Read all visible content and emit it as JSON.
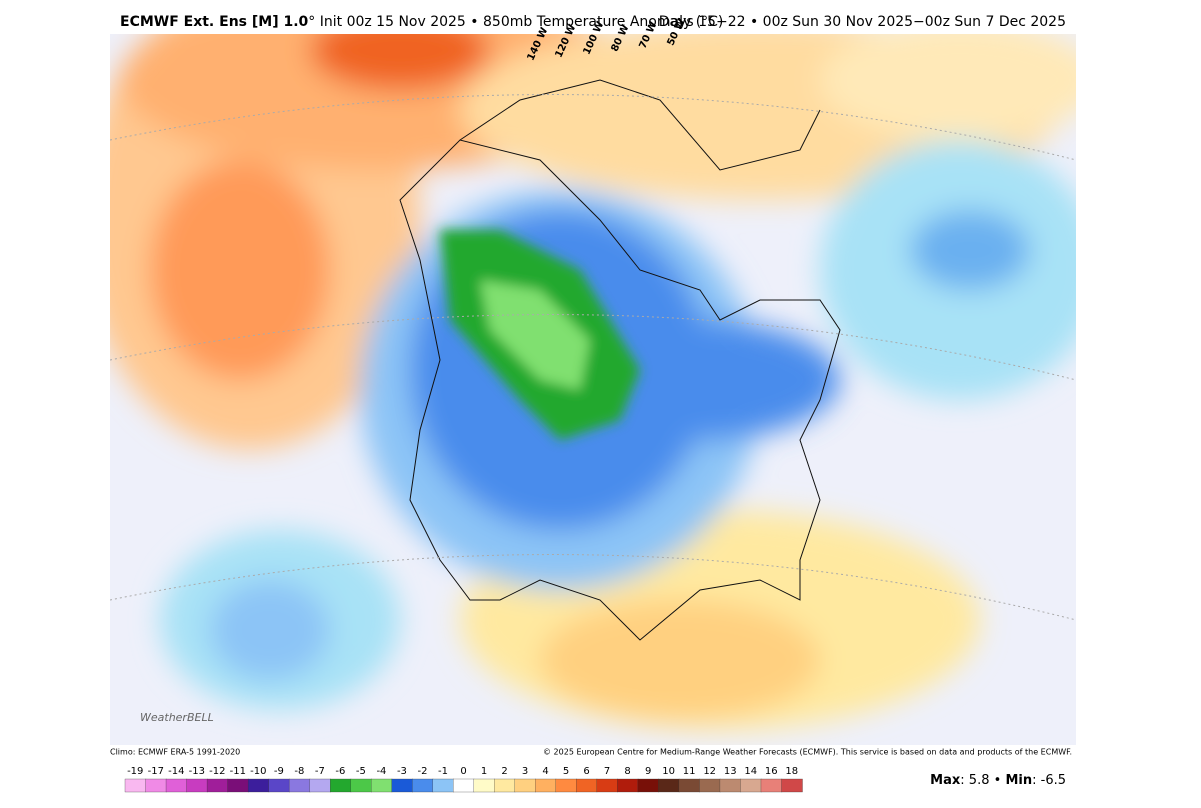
{
  "header": {
    "title_bold": "ECMWF Ext. Ens [M] 1.0",
    "title_rest": "° Init 00z 15 Nov 2025 • 850mb Temperature Anomaly (°C)",
    "valid": "Days 15−22 • 00z Sun 30 Nov 2025−00z Sun 7 Dec 2025"
  },
  "map": {
    "longitude_labels": [
      "140 W",
      "120 W",
      "100 W",
      "80 W",
      "70 W",
      "50 W"
    ],
    "logo": "WeatherBELL"
  },
  "footer": {
    "climo": "Climo: ECMWF ERA-5 1991-2020",
    "copyright": "© 2025 European Centre for Medium-Range Weather Forecasts (ECMWF). This service is based on data and products of the ECMWF."
  },
  "colorbar": {
    "labels": [
      -19,
      -17,
      -14,
      -13,
      -12,
      -11,
      -10,
      -9,
      -8,
      -7,
      -6,
      -5,
      -4,
      -3,
      -2,
      -1,
      0,
      1,
      2,
      3,
      4,
      5,
      6,
      7,
      8,
      9,
      10,
      11,
      12,
      13,
      14,
      16,
      18
    ],
    "colors": [
      "#f9b8f0",
      "#f08ae6",
      "#e060d8",
      "#c83cc0",
      "#a01e9a",
      "#7a0e78",
      "#3c1e9c",
      "#5a46c8",
      "#8a78e0",
      "#b4a8f0",
      "#23a82e",
      "#4cc848",
      "#80e070",
      "#1a5ad8",
      "#4a8cec",
      "#8cc4f6",
      "#ffffff",
      "#fffbc8",
      "#ffe9a0",
      "#ffd080",
      "#ffb060",
      "#ff8a40",
      "#f06424",
      "#d83c14",
      "#b01c0c",
      "#781008",
      "#5a2818",
      "#7a4a34",
      "#9a6a50",
      "#bc8a70",
      "#d8a890",
      "#e88078",
      "#d04848"
    ]
  },
  "stats": {
    "max_label": "Max",
    "separator": ":",
    "max": 5.8,
    "bullet": "•",
    "min_label": "Min",
    "min": -6.5
  }
}
